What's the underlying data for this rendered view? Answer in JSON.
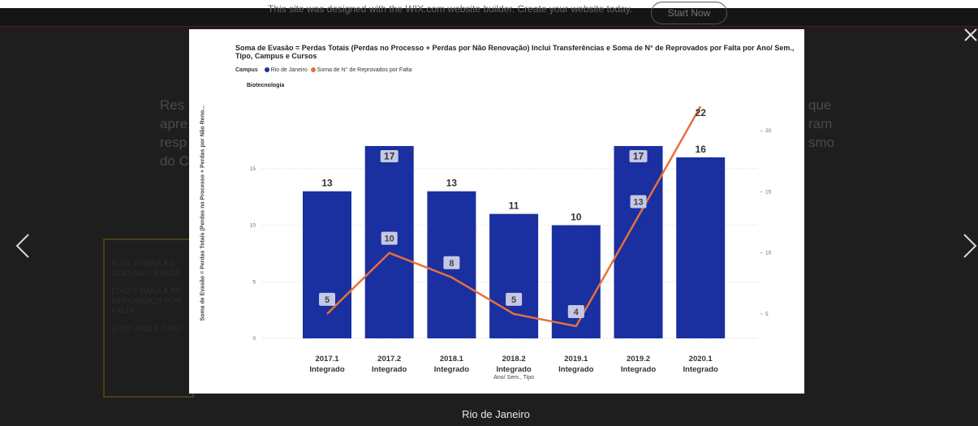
{
  "banner": {
    "text": "This site was designed with the WIX.com website builder. Create your website today.",
    "button_label": "Start Now"
  },
  "background": {
    "para_left": [
      "Res",
      "apre",
      "resp",
      "do C"
    ],
    "para_right": [
      "que",
      "ram",
      "smo"
    ],
    "box_lines": [
      "EIXO Y PARA AS COLUNA = EVASÃ",
      "EIXO Y PARA A RE REPOVADOS POR FALTA",
      "EIXO: ANO E TIPO"
    ]
  },
  "lightbox": {
    "caption": "Rio de Janeiro",
    "icons": {
      "prev": "chevron-left-icon",
      "next": "chevron-right-icon",
      "close": "close-icon"
    }
  },
  "chart_data": {
    "type": "bar",
    "title": "Soma de Evasão = Perdas Totais (Perdas no Processo + Perdas por Não Renovação) Inclui Transferências e Soma de N° de Reprovados por Falta por Ano/ Sem., Tipo, Campus e Cursos",
    "legend_title": "Campus",
    "legend_placement": "top-left",
    "subtitle": "Biotecnologia",
    "ylabel": "Soma de Evasão = Perdas Totais (Perdas no Processo + Perdas por Não Reno...",
    "xlabel": "Ano/ Sem., Tipo",
    "categories": [
      [
        "2017.1",
        "Integrado"
      ],
      [
        "2017.2",
        "Integrado"
      ],
      [
        "2018.1",
        "Integrado"
      ],
      [
        "2018.2",
        "Integrado"
      ],
      [
        "2019.1",
        "Integrado"
      ],
      [
        "2019.2",
        "Integrado"
      ],
      [
        "2020.1",
        "Integrado"
      ]
    ],
    "ylim": [
      0,
      17.5
    ],
    "y2lim": [
      3,
      23
    ],
    "yticks": [
      0,
      5,
      10,
      15
    ],
    "y2ticks": [
      5,
      10,
      15,
      20
    ],
    "grid": true,
    "series": [
      {
        "name": "Rio de Janeiro",
        "kind": "bar",
        "axis": "left",
        "color": "#1a2fa0",
        "values": [
          13,
          17,
          13,
          11,
          10,
          17,
          16
        ],
        "label_style": [
          "top",
          "box",
          "top",
          "top",
          "top",
          "box",
          "top"
        ]
      },
      {
        "name": "Soma de N° de Reprovados por Falta",
        "kind": "line",
        "axis": "right",
        "color": "#e8703a",
        "values": [
          5,
          10,
          8,
          5,
          4,
          13,
          22
        ],
        "label_style": [
          "box",
          "box",
          "box",
          "box",
          "box",
          "box",
          "top"
        ]
      }
    ]
  }
}
